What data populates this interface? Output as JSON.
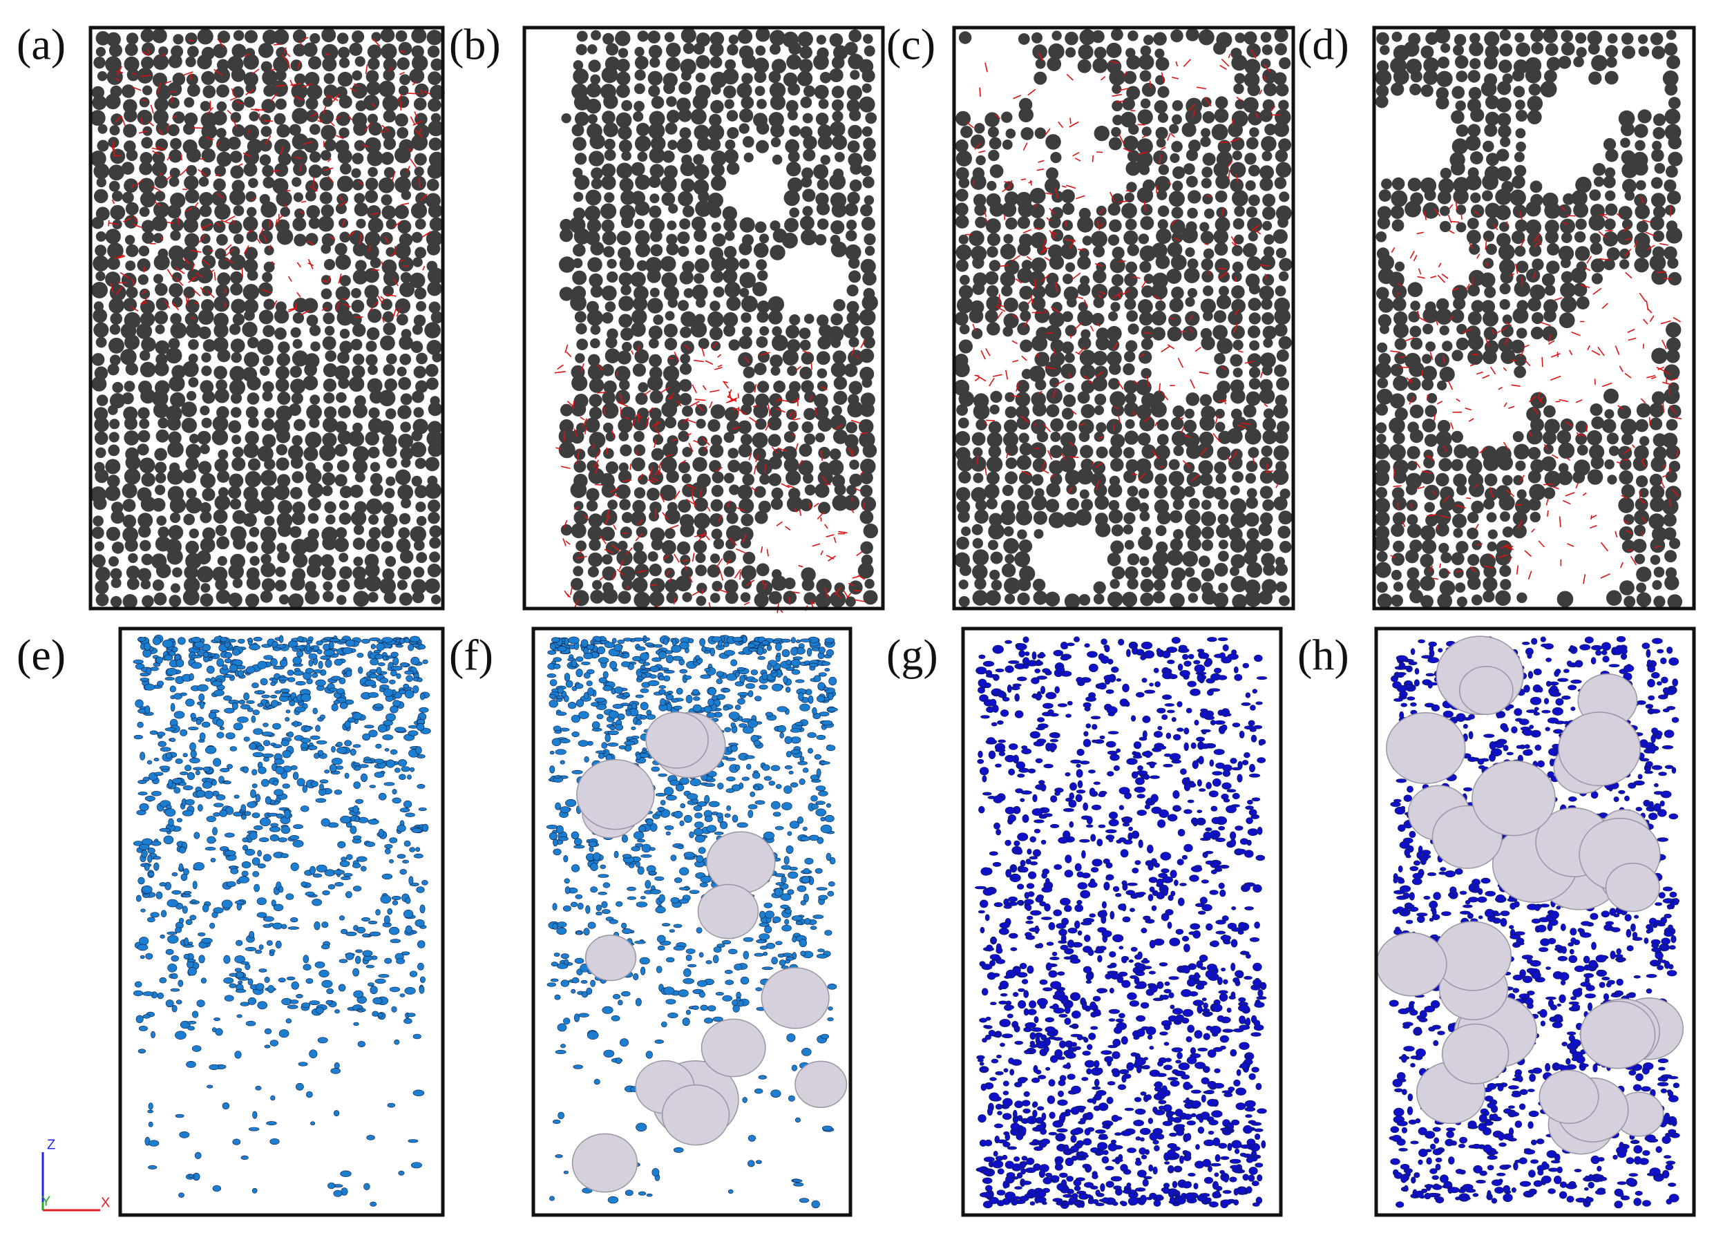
{
  "panels": [
    {
      "label": "(a)"
    },
    {
      "label": "(b)"
    },
    {
      "label": "(c)"
    },
    {
      "label": "(d)"
    },
    {
      "label": "(e)"
    },
    {
      "label": "(f)"
    },
    {
      "label": "(g)"
    },
    {
      "label": "(h)"
    }
  ],
  "axes": {
    "z": "Z",
    "y": "Y",
    "x": "X"
  }
}
